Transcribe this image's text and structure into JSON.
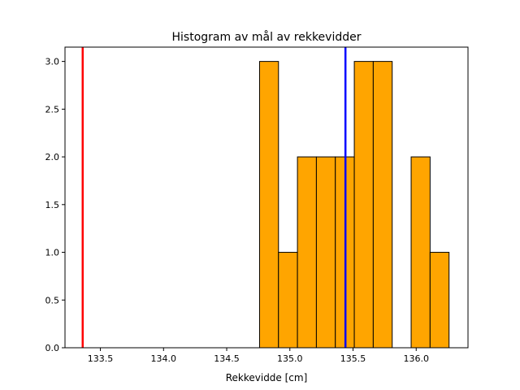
{
  "chart_data": {
    "type": "bar",
    "title": "Histogram av mål av rekkevidder",
    "xlabel": "Rekkevidde [cm]",
    "ylabel": "",
    "xlim": [
      133.22,
      136.41
    ],
    "ylim": [
      0,
      3.15
    ],
    "grid": false,
    "bar_color": "#ffa500",
    "edge_color": "#000000",
    "bins": [
      {
        "x0": 134.76,
        "x1": 134.91,
        "count": 3
      },
      {
        "x0": 134.91,
        "x1": 135.06,
        "count": 1
      },
      {
        "x0": 135.06,
        "x1": 135.21,
        "count": 2
      },
      {
        "x0": 135.21,
        "x1": 135.36,
        "count": 2
      },
      {
        "x0": 135.36,
        "x1": 135.51,
        "count": 2
      },
      {
        "x0": 135.51,
        "x1": 135.66,
        "count": 3
      },
      {
        "x0": 135.66,
        "x1": 135.81,
        "count": 3
      },
      {
        "x0": 135.81,
        "x1": 135.96,
        "count": 0
      },
      {
        "x0": 135.96,
        "x1": 136.11,
        "count": 2
      },
      {
        "x0": 136.11,
        "x1": 136.26,
        "count": 1
      }
    ],
    "vertical_lines": [
      {
        "x": 133.36,
        "color": "#ff0000"
      },
      {
        "x": 135.44,
        "color": "#0000ff"
      }
    ],
    "x_ticks": [
      {
        "value": 133.5,
        "label": "133.5"
      },
      {
        "value": 134.0,
        "label": "134.0"
      },
      {
        "value": 134.5,
        "label": "134.5"
      },
      {
        "value": 135.0,
        "label": "135.0"
      },
      {
        "value": 135.5,
        "label": "135.5"
      },
      {
        "value": 136.0,
        "label": "136.0"
      }
    ],
    "y_ticks": [
      {
        "value": 0.0,
        "label": "0.0"
      },
      {
        "value": 0.5,
        "label": "0.5"
      },
      {
        "value": 1.0,
        "label": "1.0"
      },
      {
        "value": 1.5,
        "label": "1.5"
      },
      {
        "value": 2.0,
        "label": "2.0"
      },
      {
        "value": 2.5,
        "label": "2.5"
      },
      {
        "value": 3.0,
        "label": "3.0"
      }
    ]
  }
}
